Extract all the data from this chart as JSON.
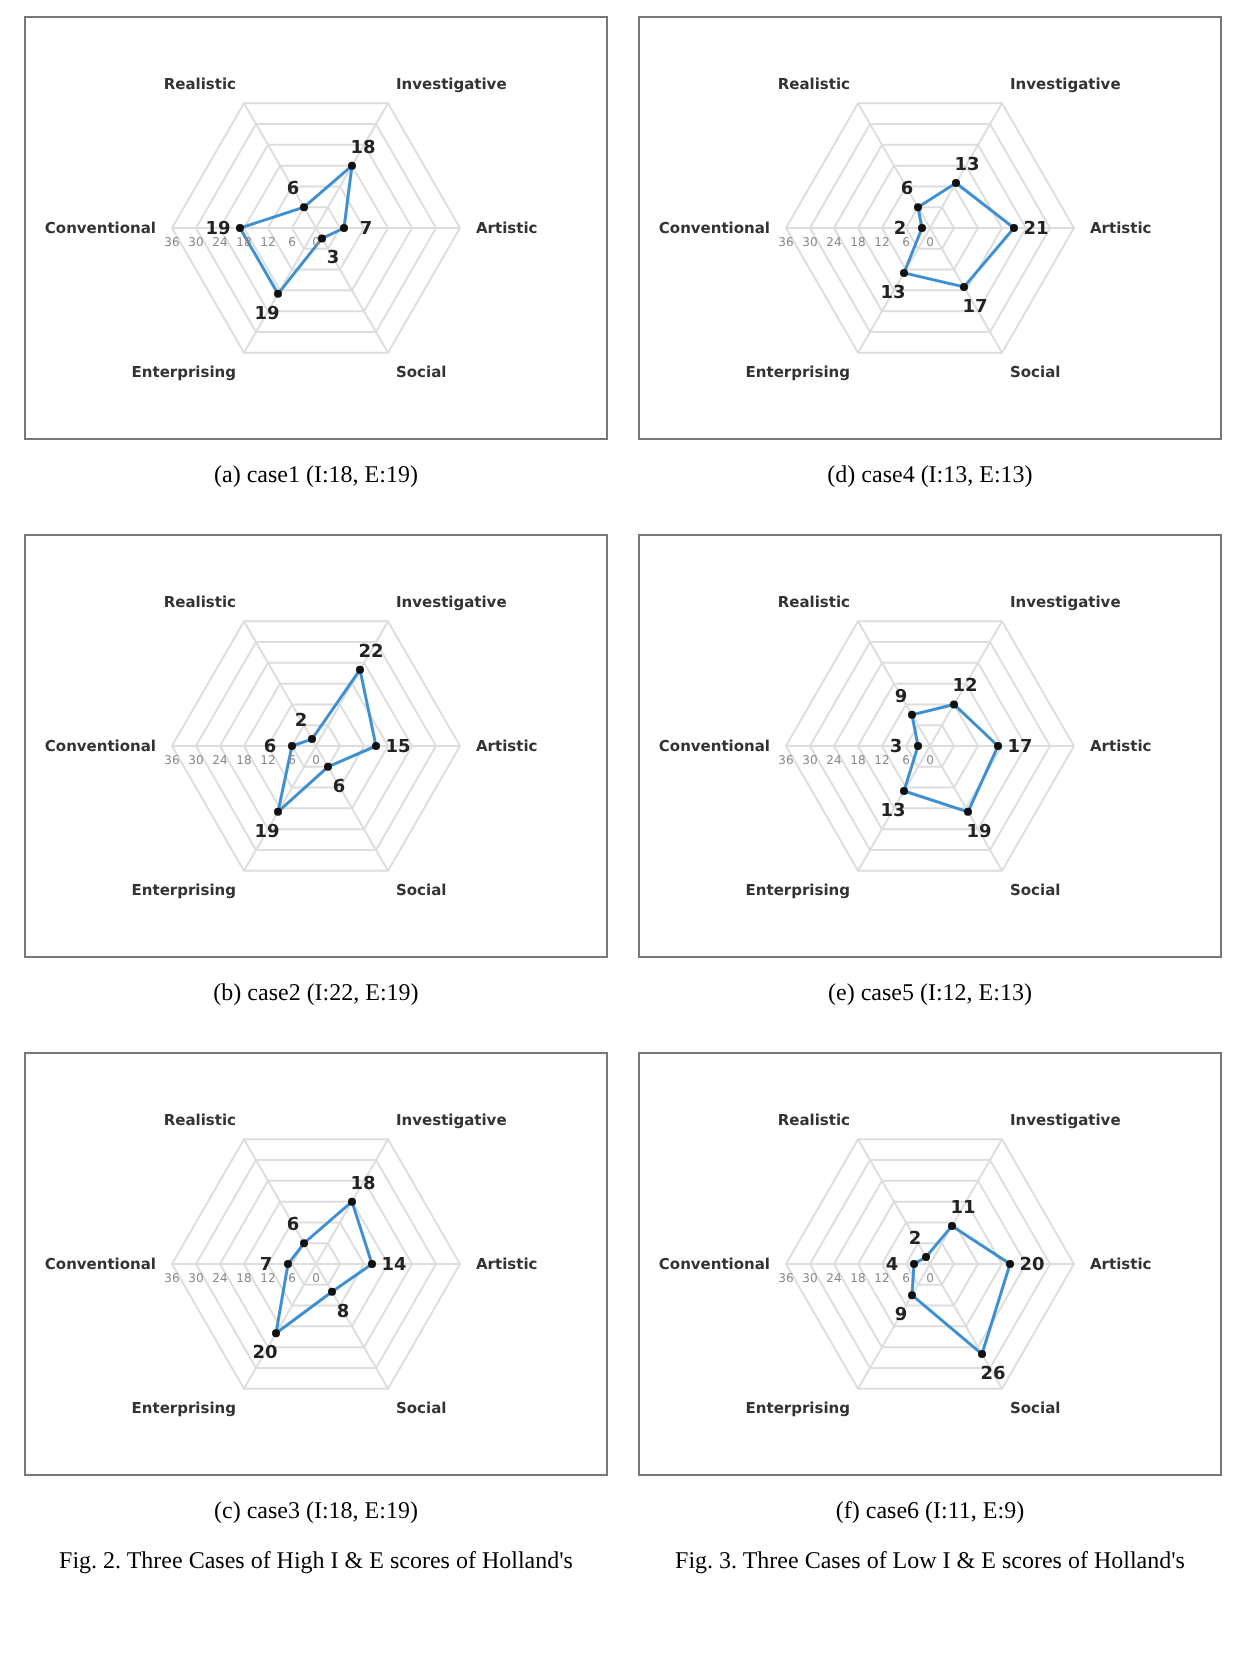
{
  "chart_data": [
    {
      "type": "radar",
      "title": "(a) case1 (I:18, E:19)",
      "categories": [
        "Investigative",
        "Artistic",
        "Social",
        "Enterprising",
        "Conventional",
        "Realistic"
      ],
      "ylim": [
        0,
        36
      ],
      "yticks": [
        0,
        6,
        12,
        18,
        24,
        30,
        36
      ],
      "grid": true,
      "marker": "circle",
      "data_labels": true,
      "series": [
        {
          "color": "#3d8fd1",
          "values": [
            18,
            7,
            3,
            19,
            19,
            6
          ]
        }
      ]
    },
    {
      "type": "radar",
      "title": "(d) case4 (I:13, E:13)",
      "categories": [
        "Investigative",
        "Artistic",
        "Social",
        "Enterprising",
        "Conventional",
        "Realistic"
      ],
      "ylim": [
        0,
        36
      ],
      "yticks": [
        0,
        6,
        12,
        18,
        24,
        30,
        36
      ],
      "grid": true,
      "marker": "circle",
      "data_labels": true,
      "series": [
        {
          "color": "#3d8fd1",
          "values": [
            13,
            21,
            17,
            13,
            2,
            6
          ]
        }
      ]
    },
    {
      "type": "radar",
      "title": "(b) case2 (I:22, E:19)",
      "categories": [
        "Investigative",
        "Artistic",
        "Social",
        "Enterprising",
        "Conventional",
        "Realistic"
      ],
      "ylim": [
        0,
        36
      ],
      "yticks": [
        0,
        6,
        12,
        18,
        24,
        30,
        36
      ],
      "grid": true,
      "marker": "circle",
      "data_labels": true,
      "series": [
        {
          "color": "#3d8fd1",
          "values": [
            22,
            15,
            6,
            19,
            6,
            2
          ]
        }
      ]
    },
    {
      "type": "radar",
      "title": "(e) case5 (I:12, E:13)",
      "categories": [
        "Investigative",
        "Artistic",
        "Social",
        "Enterprising",
        "Conventional",
        "Realistic"
      ],
      "ylim": [
        0,
        36
      ],
      "yticks": [
        0,
        6,
        12,
        18,
        24,
        30,
        36
      ],
      "grid": true,
      "marker": "circle",
      "data_labels": true,
      "series": [
        {
          "color": "#3d8fd1",
          "values": [
            12,
            17,
            19,
            13,
            3,
            9
          ]
        }
      ]
    },
    {
      "type": "radar",
      "title": "(c) case3 (I:18, E:19)",
      "categories": [
        "Investigative",
        "Artistic",
        "Social",
        "Enterprising",
        "Conventional",
        "Realistic"
      ],
      "ylim": [
        0,
        36
      ],
      "yticks": [
        0,
        6,
        12,
        18,
        24,
        30,
        36
      ],
      "grid": true,
      "marker": "circle",
      "data_labels": true,
      "annotations": [
        "Fig. 2. Three Cases of High I & E scores of Holland's"
      ],
      "series": [
        {
          "color": "#3d8fd1",
          "values": [
            18,
            14,
            8,
            20,
            7,
            6
          ]
        }
      ]
    },
    {
      "type": "radar",
      "title": "(f) case6 (I:11, E:9)",
      "categories": [
        "Investigative",
        "Artistic",
        "Social",
        "Enterprising",
        "Conventional",
        "Realistic"
      ],
      "ylim": [
        0,
        36
      ],
      "yticks": [
        0,
        6,
        12,
        18,
        24,
        30,
        36
      ],
      "grid": true,
      "marker": "circle",
      "data_labels": true,
      "annotations": [
        "Fig. 3. Three Cases of Low I & E scores of Holland's"
      ],
      "series": [
        {
          "color": "#3d8fd1",
          "values": [
            11,
            20,
            26,
            9,
            4,
            2
          ]
        }
      ]
    }
  ]
}
